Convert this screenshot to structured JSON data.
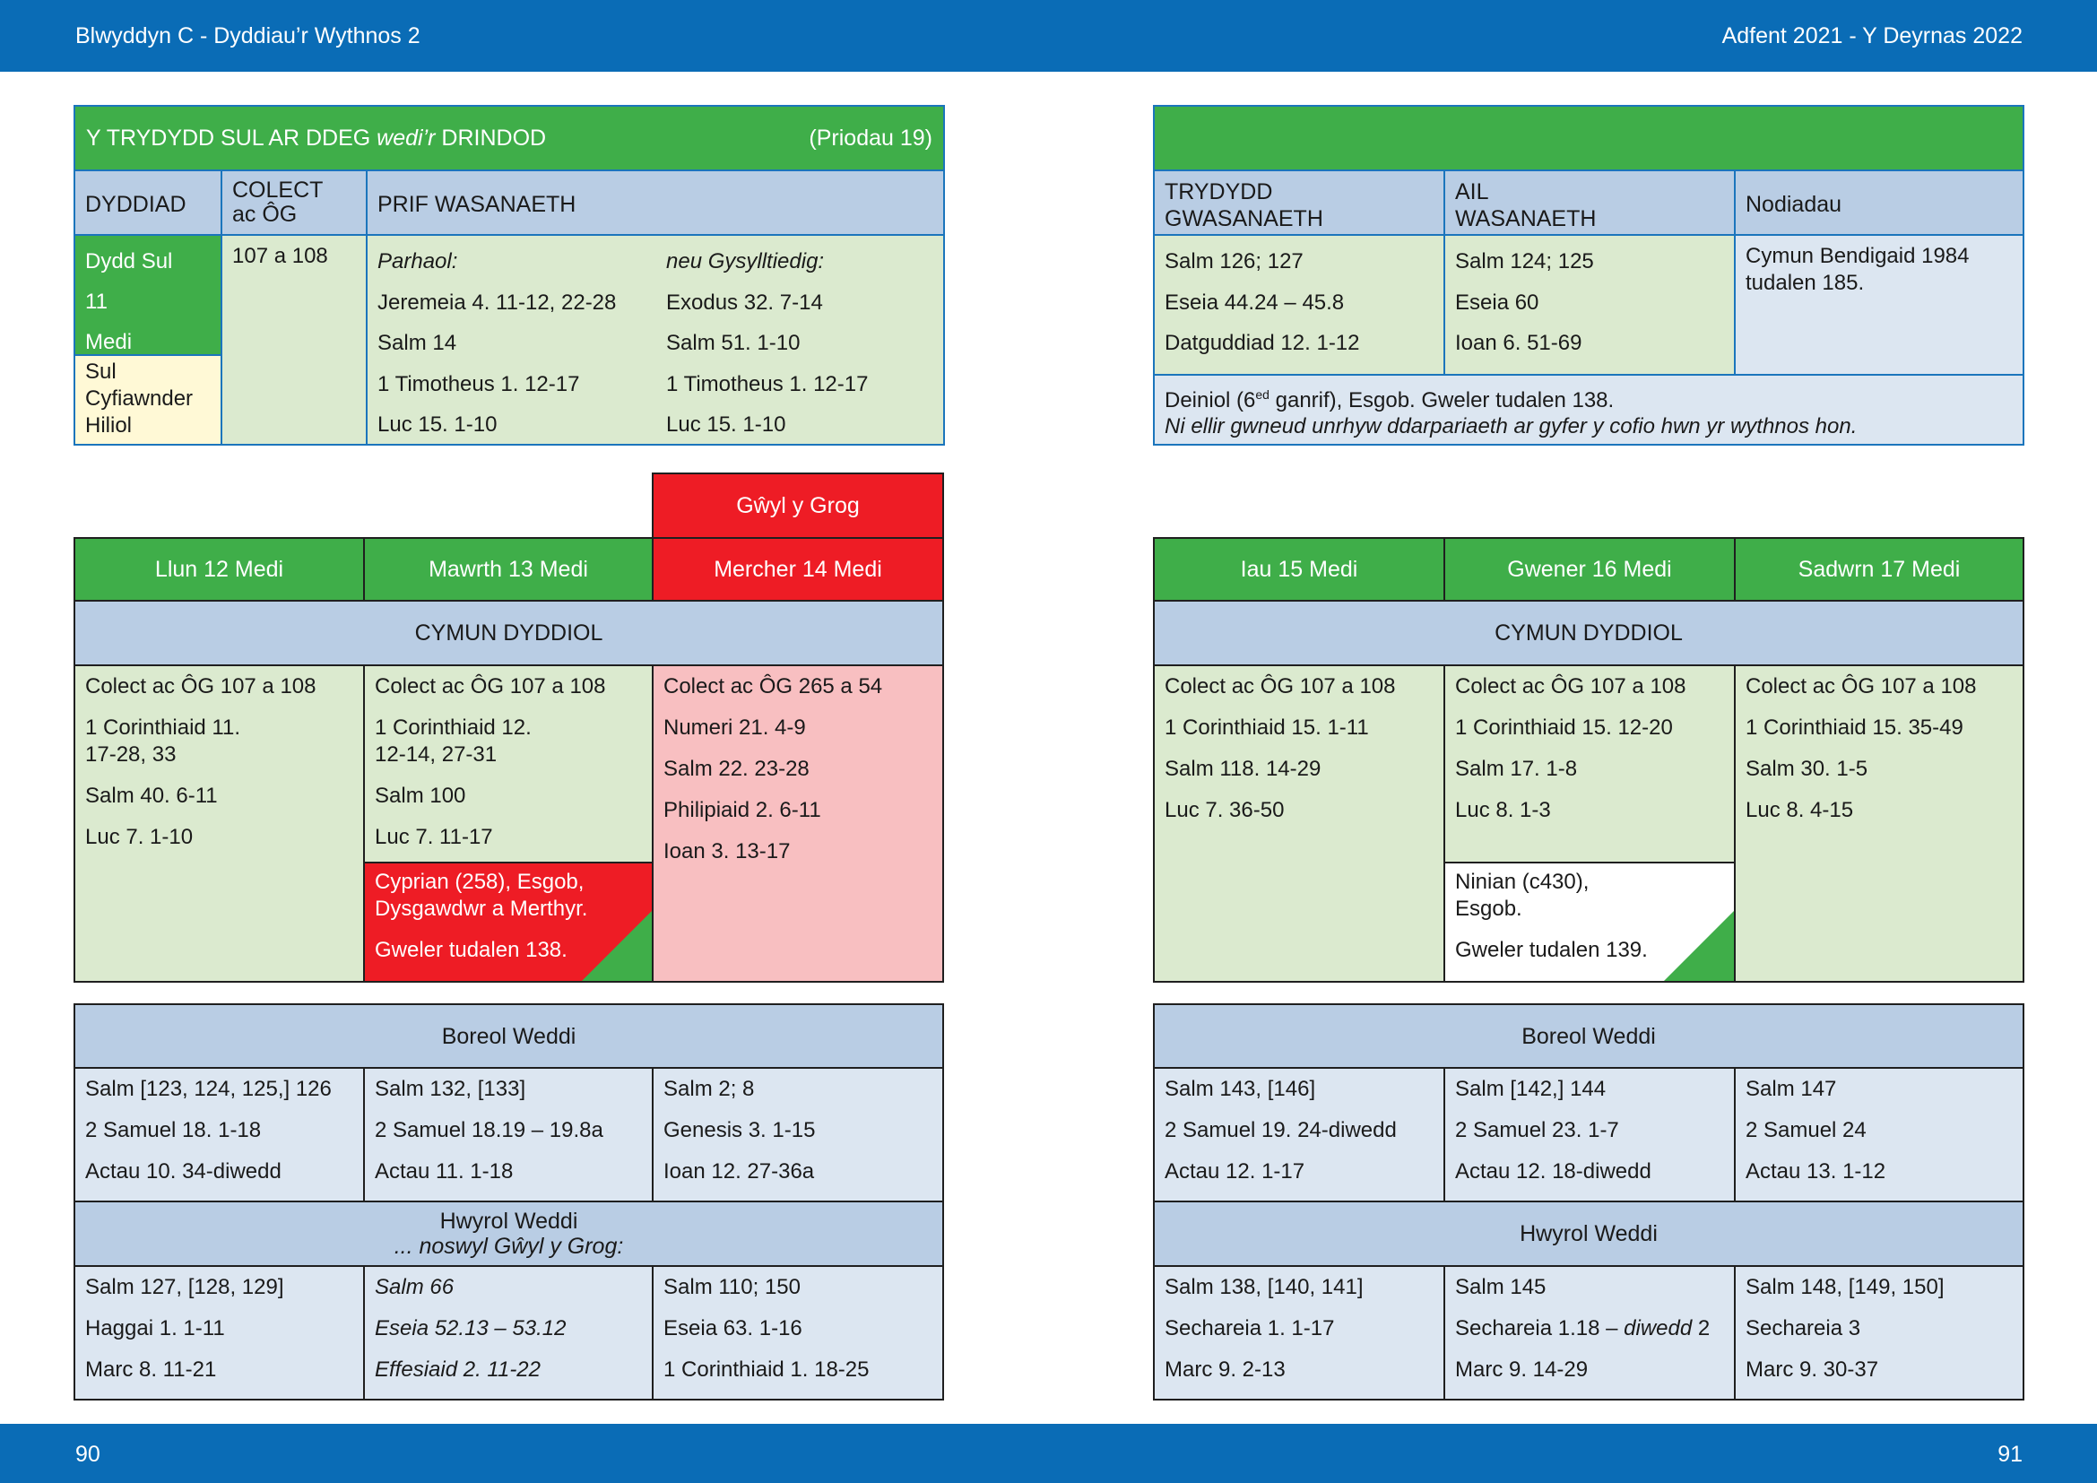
{
  "header": {
    "left": "Blwyddyn  C - Dyddiau’r Wythnos 2",
    "right": "Adfent 2021 - Y Deyrnas 2022"
  },
  "footer": {
    "page_left": "90",
    "page_right": "91"
  },
  "sunday": {
    "title_a": "Y TRYDYDD SUL AR DDEG ",
    "title_b": "wedi’r",
    "title_c": " DRINDOD",
    "note": "(Priodau 19)",
    "col_date": "DYDDIAD",
    "col_collect_1": "COLECT",
    "col_collect_2": "ac ÔG",
    "col_main": "PRIF WASANAETH",
    "date_lines": [
      "Dydd Sul",
      "11",
      "Medi"
    ],
    "sunday_tag": [
      "Sul",
      "Cyfiawnder",
      "Hiliol"
    ],
    "collect": "107 a 108",
    "continuous_head": "Parhaol:",
    "continuous": [
      "Jeremeia 4. 11-12, 22-28",
      "Salm 14",
      "1 Timotheus 1. 12-17",
      "Luc 15. 1-10"
    ],
    "related_head": "neu Gysylltiedig:",
    "related": [
      "Exodus 32. 7-14",
      "Salm 51. 1-10",
      "1 Timotheus 1. 12-17",
      "Luc 15. 1-10"
    ]
  },
  "sunday_right": {
    "col_third_1": "TRYDYDD",
    "col_third_2": "GWASANAETH",
    "col_second_1": "AIL",
    "col_second_2": "WASANAETH",
    "col_notes": "Nodiadau",
    "third": [
      "Salm 126; 127",
      "Eseia 44.24 – 45.8",
      "Datguddiad 12. 1-12"
    ],
    "second": [
      "Salm 124; 125",
      "Eseia 60",
      "Ioan 6. 51-69"
    ],
    "notes": [
      "Cymun Bendigaid 1984",
      "tudalen 185."
    ],
    "footnote_a": "Deiniol (6",
    "footnote_sup": "ed",
    "footnote_b": " ganrif), Esgob. Gweler tudalen 138.",
    "footnote_2": "Ni ellir gwneud unrhyw ddarpariaeth ar gyfer y cofio hwn yr wythnos hon."
  },
  "feast_label": "Gŵyl y Grog",
  "days": [
    "Llun 12 Medi",
    "Mawrth 13 Medi",
    "Mercher 14 Medi",
    "Iau 15 Medi",
    "Gwener 16 Medi",
    "Sadwrn 17 Medi"
  ],
  "daily_eucharist": "CYMUN DYDDIOL",
  "eucharist": {
    "mon": [
      "Colect ac ÔG 107 a 108",
      "1 Corinthiaid 11.",
      "17-28, 33",
      "Salm 40. 6-11",
      "Luc 7. 1-10"
    ],
    "tue": [
      "Colect ac ÔG 107 a 108",
      "1 Corinthiaid 12.",
      "12-14, 27-31",
      "Salm 100",
      "Luc 7. 11-17"
    ],
    "wed": [
      "Colect ac ÔG 265 a 54",
      "Numeri 21. 4-9",
      "Salm 22. 23-28",
      "Philipiaid 2. 6-11",
      "Ioan 3. 13-17"
    ],
    "thu": [
      "Colect ac ÔG 107 a 108",
      "1 Corinthiaid 15. 1-11",
      "Salm 118. 14-29",
      "Luc 7. 36-50"
    ],
    "fri": [
      "Colect ac ÔG 107 a 108",
      "1 Corinthiaid 15. 12-20",
      "Salm 17. 1-8",
      "Luc 8. 1-3"
    ],
    "sat": [
      "Colect ac ÔG 107 a 108",
      "1 Corinthiaid 15. 35-49",
      "Salm 30. 1-5",
      "Luc 8. 4-15"
    ]
  },
  "commemorations": {
    "tue": [
      "Cyprian (258), Esgob,",
      "Dysgawdwr a Merthyr.",
      "Gweler tudalen 138."
    ],
    "fri": [
      "Ninian (c430),",
      "Esgob.",
      "Gweler tudalen 139."
    ]
  },
  "morning_prayer": "Boreol Weddi",
  "morning": {
    "mon": [
      "Salm [123, 124, 125,] 126",
      "2 Samuel 18. 1-18",
      "Actau 10. 34-diwedd"
    ],
    "tue": [
      "Salm 132, [133]",
      "2 Samuel 18.19 – 19.8a",
      "Actau 11. 1-18"
    ],
    "wed": [
      "Salm 2; 8",
      "Genesis 3. 1-15",
      "Ioan 12. 27-36a"
    ],
    "thu": [
      "Salm 143, [146]",
      "2 Samuel 19. 24-diwedd",
      "Actau 12. 1-17"
    ],
    "fri": [
      "Salm [142,] 144",
      "2 Samuel 23. 1-7",
      "Actau 12. 18-diwedd"
    ],
    "sat": [
      "Salm 147",
      "2 Samuel 24",
      "Actau 13. 1-12"
    ]
  },
  "evening_prayer": "Hwyrol Weddi",
  "evening_eve": "... noswyl Gŵyl y Grog:",
  "evening": {
    "mon": [
      "Salm 127, [128, 129]",
      "Haggai 1. 1-11",
      "Marc 8. 11-21"
    ],
    "tue": [
      "Salm 66",
      "Eseia 52.13 – 53.12",
      "Effesiaid 2. 11-22"
    ],
    "wed": [
      "Salm 110; 150",
      "Eseia 63. 1-16",
      "1 Corinthiaid 1. 18-25"
    ],
    "thu": [
      "Salm 138, [140, 141]",
      "Sechareia 1. 1-17",
      "Marc 9. 2-13"
    ],
    "fri_a": "Salm 145",
    "fri_b1": "Sechareia 1.18 – ",
    "fri_b2": "diwedd",
    "fri_b3": " 2",
    "fri_c": "Marc 9. 14-29",
    "sat": [
      "Salm 148, [149, 150]",
      "Sechareia 3",
      "Marc 9. 30-37"
    ]
  },
  "colors": {
    "blue_bar": "#0a6cb6",
    "green": "#3fae49",
    "red": "#ee1c25",
    "pink": "#f8bfc1",
    "light_green": "#dbeacf",
    "light_blue": "#dce6f1",
    "header_blue": "#b9cde4"
  }
}
